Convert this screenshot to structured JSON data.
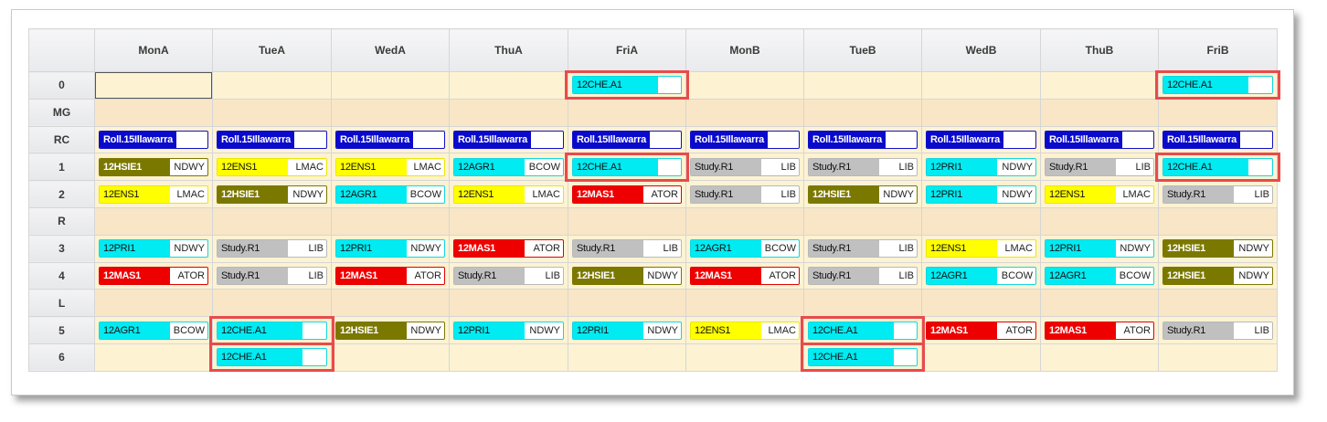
{
  "days": [
    "MonA",
    "TueA",
    "WedA",
    "ThuA",
    "FriA",
    "MonB",
    "TueB",
    "WedB",
    "ThuB",
    "FriB"
  ],
  "periods": [
    {
      "label": "0",
      "break": false,
      "cells": [
        null,
        null,
        null,
        null,
        {
          "name": "12CHE.A1",
          "room": "",
          "kind": "che"
        },
        null,
        null,
        null,
        null,
        {
          "name": "12CHE.A1",
          "room": "",
          "kind": "che"
        }
      ]
    },
    {
      "label": "MG",
      "break": true,
      "cells": [
        null,
        null,
        null,
        null,
        null,
        null,
        null,
        null,
        null,
        null
      ]
    },
    {
      "label": "RC",
      "break": false,
      "cells": [
        {
          "name": "Roll.15Illawarra",
          "room": "",
          "kind": "roll"
        },
        {
          "name": "Roll.15Illawarra",
          "room": "",
          "kind": "roll"
        },
        {
          "name": "Roll.15Illawarra",
          "room": "",
          "kind": "roll"
        },
        {
          "name": "Roll.15Illawarra",
          "room": "",
          "kind": "roll"
        },
        {
          "name": "Roll.15Illawarra",
          "room": "",
          "kind": "roll"
        },
        {
          "name": "Roll.15Illawarra",
          "room": "",
          "kind": "roll"
        },
        {
          "name": "Roll.15Illawarra",
          "room": "",
          "kind": "roll"
        },
        {
          "name": "Roll.15Illawarra",
          "room": "",
          "kind": "roll"
        },
        {
          "name": "Roll.15Illawarra",
          "room": "",
          "kind": "roll"
        },
        {
          "name": "Roll.15Illawarra",
          "room": "",
          "kind": "roll"
        }
      ]
    },
    {
      "label": "1",
      "break": false,
      "cells": [
        {
          "name": "12HSIE1",
          "room": "NDWY",
          "kind": "hsie"
        },
        {
          "name": "12ENS1",
          "room": "LMAC",
          "kind": "ens"
        },
        {
          "name": "12ENS1",
          "room": "LMAC",
          "kind": "ens"
        },
        {
          "name": "12AGR1",
          "room": "BCOW",
          "kind": "agr"
        },
        {
          "name": "12CHE.A1",
          "room": "",
          "kind": "che"
        },
        {
          "name": "Study.R1",
          "room": "LIB",
          "kind": "study"
        },
        {
          "name": "Study.R1",
          "room": "LIB",
          "kind": "study"
        },
        {
          "name": "12PRI1",
          "room": "NDWY",
          "kind": "pri"
        },
        {
          "name": "Study.R1",
          "room": "LIB",
          "kind": "study"
        },
        {
          "name": "12CHE.A1",
          "room": "",
          "kind": "che"
        }
      ]
    },
    {
      "label": "2",
      "break": false,
      "cells": [
        {
          "name": "12ENS1",
          "room": "LMAC",
          "kind": "ens"
        },
        {
          "name": "12HSIE1",
          "room": "NDWY",
          "kind": "hsie"
        },
        {
          "name": "12AGR1",
          "room": "BCOW",
          "kind": "agr"
        },
        {
          "name": "12ENS1",
          "room": "LMAC",
          "kind": "ens"
        },
        {
          "name": "12MAS1",
          "room": "ATOR",
          "kind": "mas"
        },
        {
          "name": "Study.R1",
          "room": "LIB",
          "kind": "study"
        },
        {
          "name": "12HSIE1",
          "room": "NDWY",
          "kind": "hsie"
        },
        {
          "name": "12PRI1",
          "room": "NDWY",
          "kind": "pri"
        },
        {
          "name": "12ENS1",
          "room": "LMAC",
          "kind": "ens"
        },
        {
          "name": "Study.R1",
          "room": "LIB",
          "kind": "study"
        }
      ]
    },
    {
      "label": "R",
      "break": true,
      "cells": [
        null,
        null,
        null,
        null,
        null,
        null,
        null,
        null,
        null,
        null
      ]
    },
    {
      "label": "3",
      "break": false,
      "cells": [
        {
          "name": "12PRI1",
          "room": "NDWY",
          "kind": "pri"
        },
        {
          "name": "Study.R1",
          "room": "LIB",
          "kind": "study"
        },
        {
          "name": "12PRI1",
          "room": "NDWY",
          "kind": "pri"
        },
        {
          "name": "12MAS1",
          "room": "ATOR",
          "kind": "mas"
        },
        {
          "name": "Study.R1",
          "room": "LIB",
          "kind": "study"
        },
        {
          "name": "12AGR1",
          "room": "BCOW",
          "kind": "agr"
        },
        {
          "name": "Study.R1",
          "room": "LIB",
          "kind": "study"
        },
        {
          "name": "12ENS1",
          "room": "LMAC",
          "kind": "ens"
        },
        {
          "name": "12PRI1",
          "room": "NDWY",
          "kind": "pri"
        },
        {
          "name": "12HSIE1",
          "room": "NDWY",
          "kind": "hsie"
        }
      ]
    },
    {
      "label": "4",
      "break": false,
      "cells": [
        {
          "name": "12MAS1",
          "room": "ATOR",
          "kind": "mas"
        },
        {
          "name": "Study.R1",
          "room": "LIB",
          "kind": "study"
        },
        {
          "name": "12MAS1",
          "room": "ATOR",
          "kind": "mas"
        },
        {
          "name": "Study.R1",
          "room": "LIB",
          "kind": "study"
        },
        {
          "name": "12HSIE1",
          "room": "NDWY",
          "kind": "hsie"
        },
        {
          "name": "12MAS1",
          "room": "ATOR",
          "kind": "mas"
        },
        {
          "name": "Study.R1",
          "room": "LIB",
          "kind": "study"
        },
        {
          "name": "12AGR1",
          "room": "BCOW",
          "kind": "agr"
        },
        {
          "name": "12AGR1",
          "room": "BCOW",
          "kind": "agr"
        },
        {
          "name": "12HSIE1",
          "room": "NDWY",
          "kind": "hsie"
        }
      ]
    },
    {
      "label": "L",
      "break": true,
      "cells": [
        null,
        null,
        null,
        null,
        null,
        null,
        null,
        null,
        null,
        null
      ]
    },
    {
      "label": "5",
      "break": false,
      "cells": [
        {
          "name": "12AGR1",
          "room": "BCOW",
          "kind": "agr"
        },
        {
          "name": "12CHE.A1",
          "room": "",
          "kind": "che"
        },
        {
          "name": "12HSIE1",
          "room": "NDWY",
          "kind": "hsie"
        },
        {
          "name": "12PRI1",
          "room": "NDWY",
          "kind": "pri"
        },
        {
          "name": "12PRI1",
          "room": "NDWY",
          "kind": "pri"
        },
        {
          "name": "12ENS1",
          "room": "LMAC",
          "kind": "ens"
        },
        {
          "name": "12CHE.A1",
          "room": "",
          "kind": "che"
        },
        {
          "name": "12MAS1",
          "room": "ATOR",
          "kind": "mas"
        },
        {
          "name": "12MAS1",
          "room": "ATOR",
          "kind": "mas"
        },
        {
          "name": "Study.R1",
          "room": "LIB",
          "kind": "study"
        }
      ]
    },
    {
      "label": "6",
      "break": false,
      "cells": [
        null,
        {
          "name": "12CHE.A1",
          "room": "",
          "kind": "che"
        },
        null,
        null,
        null,
        null,
        {
          "name": "12CHE.A1",
          "room": "",
          "kind": "che"
        },
        null,
        null,
        null
      ]
    }
  ],
  "colors": {
    "highlight": "#e84b4b",
    "roll": "#0a0acc",
    "che": "#00ebf2",
    "hsie": "#7b7800",
    "ens": "#ffff00",
    "mas": "#ee0000",
    "study": "#c0c0c0",
    "cell_bg": "#fdf3d2",
    "break_bg": "#f9e6c6"
  }
}
